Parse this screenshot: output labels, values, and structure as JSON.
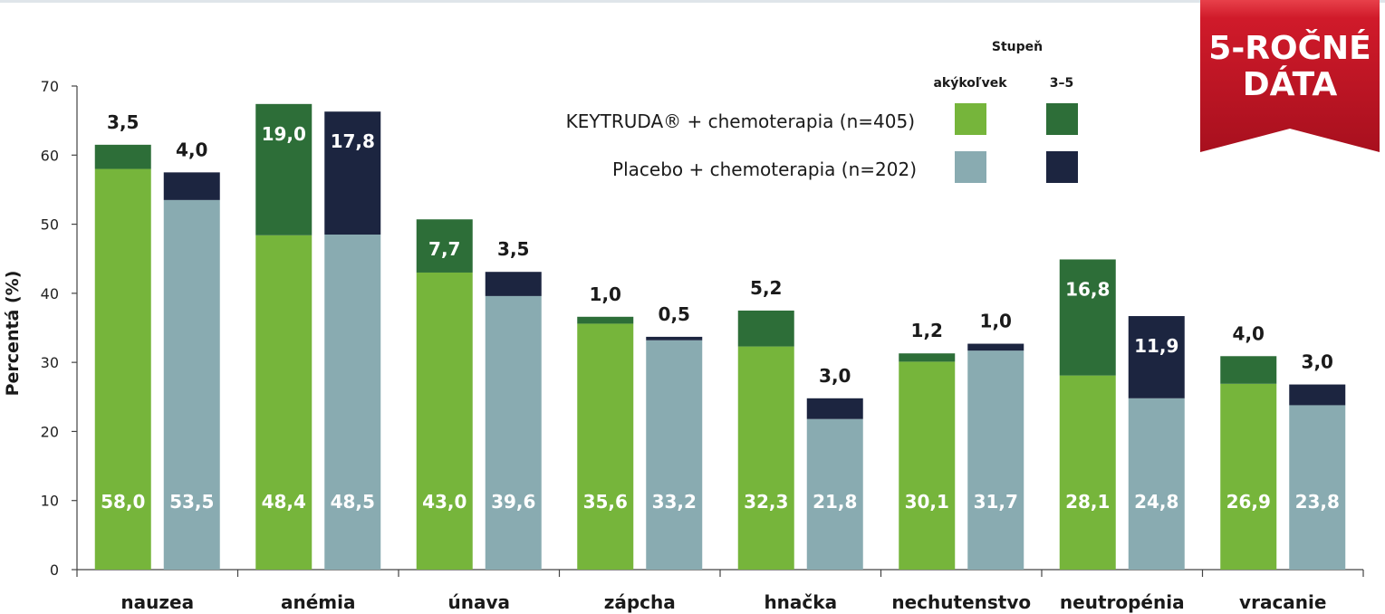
{
  "badge": {
    "line1": "5-ROČNÉ",
    "line2": "DÁTA",
    "color": "#c8102e"
  },
  "legend": {
    "header": "Stupeň",
    "col_any": "akýkoľvek",
    "col_severe": "3–5",
    "rows": [
      {
        "label": "KEYTRUDA® + chemoterapia (n=405)",
        "any_color": "#76b53b",
        "severe_color": "#2d6e38"
      },
      {
        "label": "Placebo + chemoterapia (n=202)",
        "any_color": "#89abb1",
        "severe_color": "#1c2540"
      }
    ]
  },
  "chart_data": {
    "type": "bar",
    "ylabel": "Percentá (%)",
    "ylim": [
      0,
      70
    ],
    "yticks": [
      0,
      10,
      20,
      30,
      40,
      50,
      60,
      70
    ],
    "grid": false,
    "stacked": true,
    "categories": [
      "nauzea",
      "anémia",
      "únava",
      "zápcha",
      "hnačka",
      "nechutenstvo",
      "neutropénia",
      "vracanie"
    ],
    "series": [
      {
        "name": "KEYTRUDA® + chemoterapia (n=405)",
        "any_grade": [
          58.0,
          48.4,
          43.0,
          35.6,
          32.3,
          30.1,
          28.1,
          26.9
        ],
        "any_grade_labels": [
          "58,0",
          "48,4",
          "43,0",
          "35,6",
          "32,3",
          "30,1",
          "28,1",
          "26,9"
        ],
        "grade_3_5": [
          3.5,
          19.0,
          7.7,
          1.0,
          5.2,
          1.2,
          16.8,
          4.0
        ],
        "grade_3_5_labels": [
          "3,5",
          "19,0",
          "7,7",
          "1,0",
          "5,2",
          "1,2",
          "16,8",
          "4,0"
        ],
        "color_any": "#76b53b",
        "color_severe": "#2d6e38"
      },
      {
        "name": "Placebo + chemoterapia (n=202)",
        "any_grade": [
          53.5,
          48.5,
          39.6,
          33.2,
          21.8,
          31.7,
          24.8,
          23.8
        ],
        "any_grade_labels": [
          "53,5",
          "48,5",
          "39,6",
          "33,2",
          "21,8",
          "31,7",
          "24,8",
          "23,8"
        ],
        "grade_3_5": [
          4.0,
          17.8,
          3.5,
          0.5,
          3.0,
          1.0,
          11.9,
          3.0
        ],
        "grade_3_5_labels": [
          "4,0",
          "17,8",
          "3,5",
          "0,5",
          "3,0",
          "1,0",
          "11,9",
          "3,0"
        ],
        "color_any": "#89abb1",
        "color_severe": "#1c2540"
      }
    ]
  }
}
